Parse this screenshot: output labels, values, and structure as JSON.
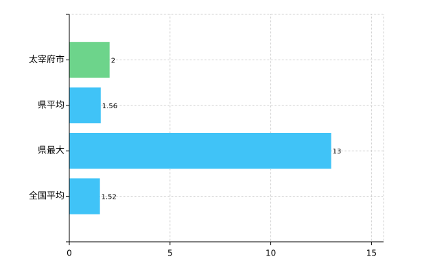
{
  "chart_data": {
    "type": "bar",
    "orientation": "horizontal",
    "categories": [
      "太宰府市",
      "県平均",
      "県最大",
      "全国平均"
    ],
    "values": [
      2,
      1.56,
      13,
      1.52
    ],
    "colors": [
      "#6dd48b",
      "#40c3f7",
      "#40c3f7",
      "#40c3f7"
    ],
    "xlim": [
      0,
      15.6
    ],
    "xticks": [
      0,
      5,
      10,
      15
    ],
    "grid": true
  }
}
